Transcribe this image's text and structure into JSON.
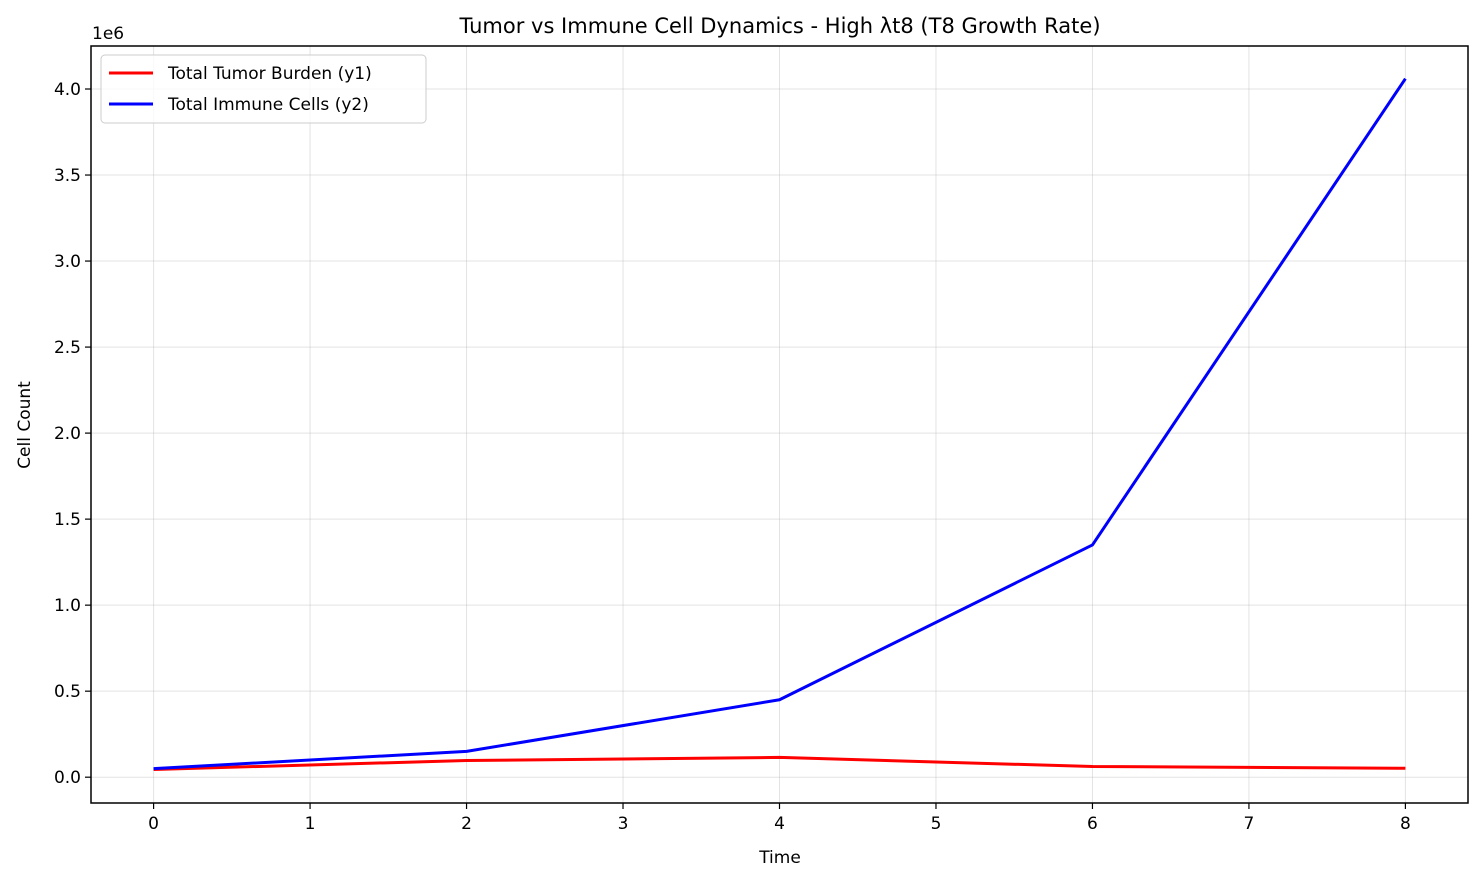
{
  "chart_data": {
    "type": "line",
    "title": "Tumor vs Immune Cell Dynamics - High λt8 (T8 Growth Rate)",
    "xlabel": "Time",
    "ylabel": "Cell Count",
    "y_offset_label": "1e6",
    "xlim": [
      -0.4,
      8.4
    ],
    "ylim": [
      -150000,
      4250000
    ],
    "x_ticks": [
      0,
      1,
      2,
      3,
      4,
      5,
      6,
      7,
      8
    ],
    "x_tick_labels": [
      "0",
      "1",
      "2",
      "3",
      "4",
      "5",
      "6",
      "7",
      "8"
    ],
    "y_ticks": [
      0,
      500000,
      1000000,
      1500000,
      2000000,
      2500000,
      3000000,
      3500000,
      4000000
    ],
    "y_tick_labels": [
      "0.0",
      "0.5",
      "1.0",
      "1.5",
      "2.0",
      "2.5",
      "3.0",
      "3.5",
      "4.0"
    ],
    "grid": true,
    "legend_position": "top-left",
    "x": [
      0,
      2,
      4,
      6,
      8
    ],
    "series": [
      {
        "name": "Total Tumor Burden (y1)",
        "color": "#ff0000",
        "values": [
          45000,
          97000,
          115000,
          62000,
          52000
        ]
      },
      {
        "name": "Total Immune Cells (y2)",
        "color": "#0000ff",
        "values": [
          50000,
          150000,
          450000,
          1350000,
          4060000
        ]
      }
    ]
  }
}
